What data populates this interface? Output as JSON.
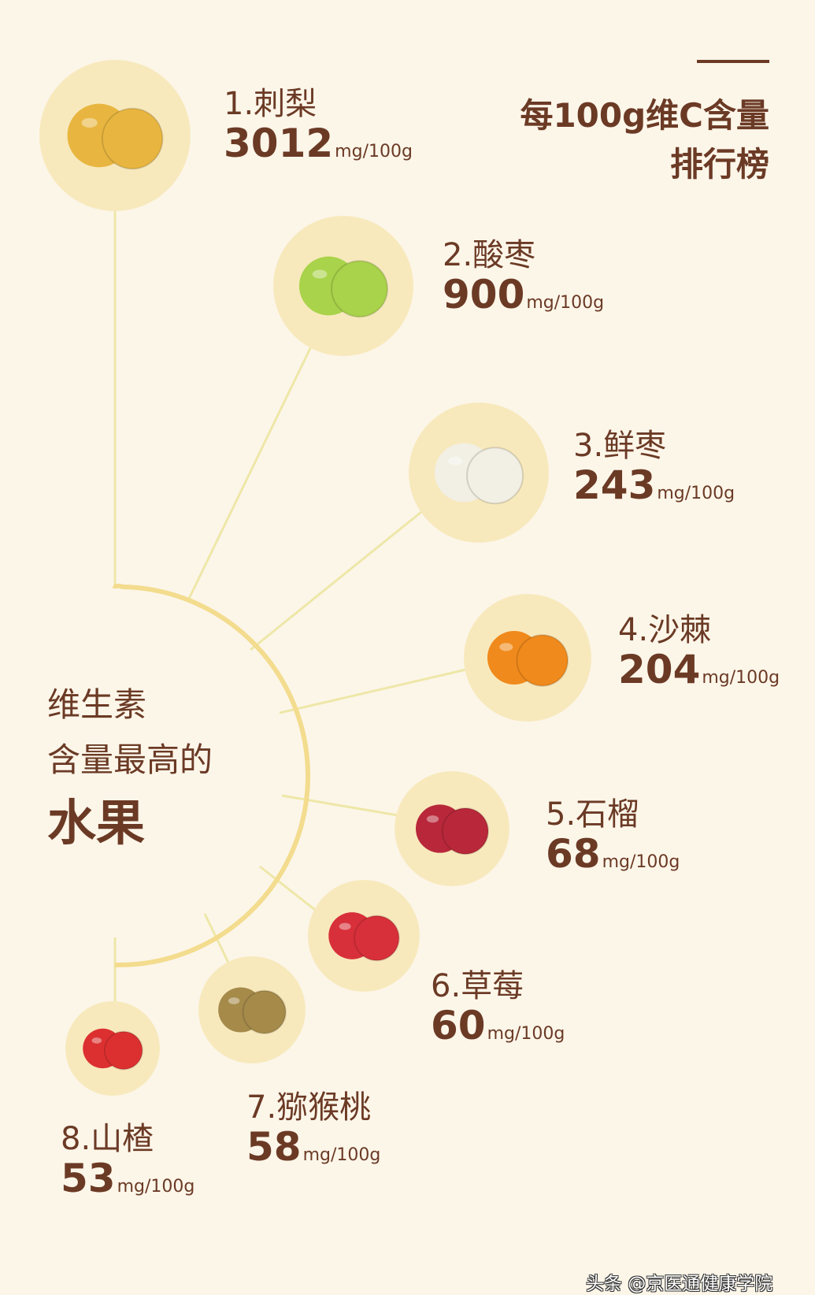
{
  "header": {
    "title_line1": "每100g维C含量",
    "title_line2": "排行榜"
  },
  "side_title": {
    "line1": "维生素",
    "line2": "含量最高的",
    "line3": "水果"
  },
  "unit": "mg/100g",
  "fruits": [
    {
      "rank_name": "1.刺梨",
      "value": "3012",
      "icon": "cili-fruit-icon"
    },
    {
      "rank_name": "2.酸枣",
      "value": "900",
      "icon": "sour-jujube-icon"
    },
    {
      "rank_name": "3.鲜枣",
      "value": "243",
      "icon": "fresh-jujube-icon"
    },
    {
      "rank_name": "4.沙棘",
      "value": "204",
      "icon": "sea-buckthorn-icon"
    },
    {
      "rank_name": "5.石榴",
      "value": "68",
      "icon": "pomegranate-icon"
    },
    {
      "rank_name": "6.草莓",
      "value": "60",
      "icon": "strawberry-icon"
    },
    {
      "rank_name": "7.猕猴桃",
      "value": "58",
      "icon": "kiwi-icon"
    },
    {
      "rank_name": "8.山楂",
      "value": "53",
      "icon": "hawthorn-icon"
    }
  ],
  "credit": "头条 @京医通健康学院",
  "colors": {
    "background": "#fcf6e9",
    "text": "#6b3a25",
    "arc": "#f3dc8e",
    "circle": "#f8e9bd",
    "connector": "#eee7a8"
  }
}
